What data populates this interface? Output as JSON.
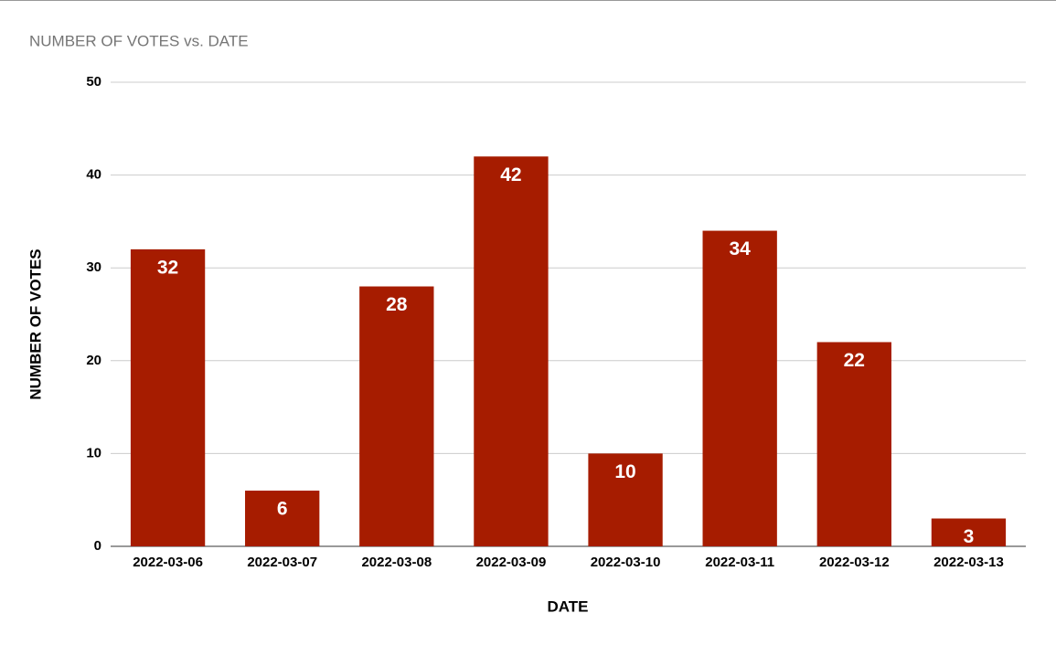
{
  "chart_data": {
    "type": "bar",
    "title": "NUMBER OF VOTES vs. DATE",
    "x_label": "DATE",
    "y_label": "NUMBER OF VOTES",
    "categories": [
      "2022-03-06",
      "2022-03-07",
      "2022-03-08",
      "2022-03-09",
      "2022-03-10",
      "2022-03-11",
      "2022-03-12",
      "2022-03-13"
    ],
    "values": [
      32,
      6,
      28,
      42,
      10,
      34,
      22,
      3
    ],
    "color": "#a61c00",
    "ylim": [
      0,
      50
    ],
    "yticks": [
      0,
      10,
      20,
      30,
      40,
      50
    ],
    "grid": true,
    "data_labels": true
  }
}
